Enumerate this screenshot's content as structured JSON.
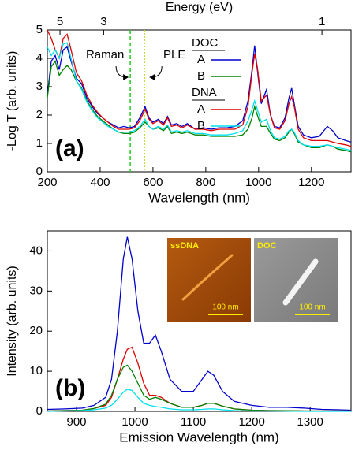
{
  "chart_data": [
    {
      "type": "line",
      "panel_label": "(a)",
      "xlabel": "Wavelength (nm)",
      "ylabel": "-Log T (arb. units)",
      "x2label": "Energy (eV)",
      "x2ticks": [
        5,
        3,
        1
      ],
      "xlim": [
        200,
        1350
      ],
      "xticks": [
        200,
        400,
        600,
        800,
        1000,
        1200
      ],
      "ylim": [
        0,
        5
      ],
      "yticks": [
        0,
        1,
        2,
        3,
        4,
        5
      ],
      "x": [
        200,
        215,
        230,
        245,
        260,
        275,
        290,
        310,
        330,
        350,
        370,
        390,
        410,
        430,
        450,
        470,
        490,
        510,
        530,
        550,
        570,
        585,
        600,
        620,
        640,
        655,
        670,
        690,
        710,
        730,
        760,
        790,
        820,
        850,
        880,
        910,
        940,
        960,
        975,
        985,
        995,
        1010,
        1030,
        1045,
        1060,
        1080,
        1100,
        1115,
        1125,
        1135,
        1150,
        1170,
        1200,
        1230,
        1260,
        1280,
        1300,
        1330,
        1350
      ],
      "series": [
        {
          "group": "DOC",
          "name": "A",
          "color": "#0000cc",
          "values": [
            2.7,
            3.9,
            4.1,
            3.6,
            4.3,
            4.4,
            3.9,
            3.3,
            3.1,
            2.6,
            2.3,
            2.05,
            1.9,
            1.75,
            1.65,
            1.55,
            1.6,
            1.55,
            1.6,
            1.9,
            2.3,
            1.9,
            1.75,
            1.85,
            1.7,
            1.95,
            1.65,
            1.7,
            1.6,
            1.7,
            1.5,
            1.55,
            1.5,
            1.55,
            1.55,
            1.6,
            1.8,
            2.5,
            3.6,
            4.45,
            3.6,
            2.4,
            2.9,
            2.0,
            1.6,
            1.55,
            1.9,
            2.6,
            2.95,
            2.4,
            1.6,
            1.3,
            1.2,
            1.25,
            1.6,
            1.45,
            1.2,
            1.1,
            1.05
          ]
        },
        {
          "group": "DOC",
          "name": "B",
          "color": "#008000",
          "values": [
            2.6,
            3.7,
            3.9,
            3.4,
            3.6,
            3.75,
            3.6,
            3.2,
            2.95,
            2.5,
            2.2,
            1.95,
            1.8,
            1.65,
            1.5,
            1.4,
            1.35,
            1.35,
            1.4,
            1.55,
            1.75,
            1.6,
            1.5,
            1.55,
            1.45,
            1.6,
            1.35,
            1.4,
            1.35,
            1.4,
            1.3,
            1.3,
            1.25,
            1.25,
            1.25,
            1.25,
            1.3,
            1.5,
            1.9,
            2.3,
            2.0,
            1.6,
            1.6,
            1.35,
            1.15,
            1.1,
            1.2,
            1.4,
            1.5,
            1.35,
            1.05,
            0.95,
            0.85,
            0.85,
            0.95,
            0.9,
            0.8,
            0.75,
            0.7
          ]
        },
        {
          "group": "DNA",
          "name": "A",
          "color": "#e00000",
          "values": [
            5.0,
            4.7,
            4.3,
            4.0,
            4.7,
            4.85,
            4.3,
            3.5,
            3.2,
            2.7,
            2.35,
            2.1,
            1.9,
            1.75,
            1.6,
            1.5,
            1.5,
            1.5,
            1.55,
            1.8,
            2.2,
            1.85,
            1.7,
            1.8,
            1.65,
            1.9,
            1.6,
            1.65,
            1.55,
            1.65,
            1.5,
            1.5,
            1.45,
            1.5,
            1.5,
            1.5,
            1.65,
            2.3,
            3.5,
            4.15,
            3.7,
            2.5,
            2.7,
            2.0,
            1.55,
            1.5,
            1.8,
            2.4,
            2.65,
            2.3,
            1.5,
            1.2,
            1.1,
            1.1,
            1.1,
            1.05,
            1.0,
            0.95,
            0.9
          ]
        },
        {
          "group": "DNA",
          "name": "B",
          "color": "#00e0ee",
          "values": [
            4.4,
            4.1,
            4.3,
            4.0,
            4.5,
            4.55,
            4.0,
            3.2,
            2.9,
            2.45,
            2.15,
            1.9,
            1.75,
            1.6,
            1.5,
            1.4,
            1.4,
            1.4,
            1.45,
            1.6,
            1.85,
            1.6,
            1.5,
            1.6,
            1.5,
            1.65,
            1.4,
            1.45,
            1.4,
            1.45,
            1.35,
            1.35,
            1.3,
            1.3,
            1.3,
            1.35,
            1.45,
            1.8,
            2.2,
            2.5,
            2.2,
            1.75,
            1.85,
            1.45,
            1.2,
            1.15,
            1.25,
            1.45,
            1.5,
            1.4,
            1.1,
            0.95,
            0.9,
            0.9,
            0.95,
            0.9,
            0.85,
            0.8,
            0.75
          ]
        }
      ],
      "vlines": [
        {
          "label": "Raman",
          "x": 514,
          "color": "#22cc22"
        },
        {
          "label": "PLE",
          "x": 568,
          "color": "#b8e020"
        }
      ]
    },
    {
      "type": "line",
      "panel_label": "(b)",
      "xlabel": "Emission Wavelength (nm)",
      "ylabel": "Intensity (arb. units)",
      "xlim": [
        850,
        1370
      ],
      "xticks": [
        900,
        1000,
        1100,
        1200,
        1300
      ],
      "ylim": [
        0,
        45
      ],
      "yticks": [
        0,
        10,
        20,
        30,
        40
      ],
      "x": [
        850,
        880,
        910,
        930,
        950,
        960,
        970,
        980,
        987,
        995,
        1005,
        1015,
        1025,
        1035,
        1045,
        1060,
        1080,
        1100,
        1115,
        1125,
        1135,
        1150,
        1170,
        1200,
        1230,
        1260,
        1290,
        1320,
        1350,
        1370
      ],
      "series": [
        {
          "color": "#0000cc",
          "values": [
            0.5,
            0.6,
            0.8,
            1.5,
            3.5,
            8,
            20,
            38,
            43.5,
            38,
            25,
            17,
            17,
            19,
            15,
            8,
            5,
            5,
            8,
            10,
            9,
            5,
            2.5,
            1.5,
            1,
            1,
            0.8,
            0.5,
            0.4,
            0.3
          ]
        },
        {
          "color": "#e00000",
          "values": [
            0.1,
            0.2,
            0.3,
            0.7,
            1.5,
            3.5,
            8,
            13,
            15.5,
            16,
            12,
            7,
            4,
            4,
            3.5,
            2,
            1,
            1,
            1.5,
            2,
            2,
            1.3,
            0.6,
            0.3,
            0.2,
            0.15,
            0.1,
            0.1,
            0.1,
            0.1
          ]
        },
        {
          "color": "#008000",
          "values": [
            0.1,
            0.2,
            0.3,
            0.7,
            1.8,
            4,
            8,
            11,
            11.5,
            10,
            7,
            4,
            3,
            3.5,
            3,
            2,
            1,
            1,
            1.5,
            2,
            2,
            1.3,
            0.6,
            0.3,
            0.2,
            0.15,
            0.1,
            0.1,
            0.1,
            0.1
          ]
        },
        {
          "color": "#00e0ee",
          "values": [
            0,
            0.1,
            0.2,
            0.4,
            0.8,
            1.5,
            3,
            4.8,
            5.5,
            5.2,
            3.5,
            2,
            1.5,
            1.2,
            1,
            0.6,
            0.4,
            0.4,
            0.5,
            0.6,
            0.6,
            0.4,
            0.2,
            0.1,
            0.1,
            0.05,
            0,
            0,
            0,
            0
          ]
        }
      ],
      "insets": [
        {
          "title": "ssDNA",
          "scale_label": "100 nm"
        },
        {
          "title": "DOC",
          "scale_label": "100 nm"
        }
      ]
    }
  ]
}
